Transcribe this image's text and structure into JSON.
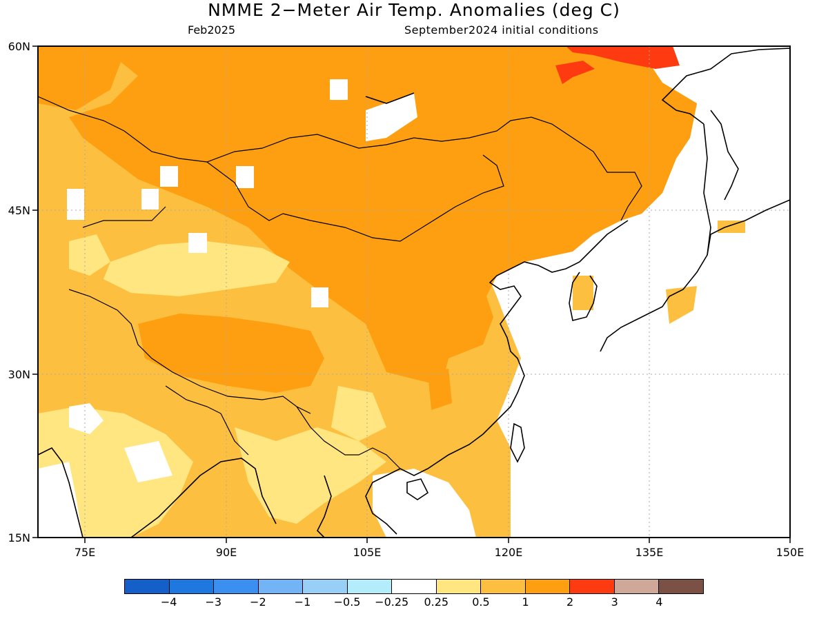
{
  "title": "NMME 2−Meter Air Temp. Anomalies (deg C)",
  "subtitle_left": "Feb2025",
  "subtitle_right": "September2024 initial conditions",
  "map": {
    "lon_range": [
      70,
      150
    ],
    "lat_range": [
      15,
      60
    ],
    "lat_labels": [
      "60N",
      "45N",
      "30N",
      "15N"
    ],
    "lon_labels": [
      "75E",
      "90E",
      "105E",
      "120E",
      "135E",
      "150E"
    ],
    "grid": "dotted"
  },
  "colorbar": {
    "colors": [
      "#1560c8",
      "#1f78e0",
      "#3a8ff0",
      "#72b4f5",
      "#98cff7",
      "#b3ecfa",
      "#ffffff",
      "#ffe680",
      "#fdbf3f",
      "#fd9f10",
      "#fd3a10",
      "#cfa899",
      "#7a5144"
    ],
    "tick_labels": [
      "−4",
      "−3",
      "−2",
      "−1",
      "−0.5",
      "−0.25",
      "0.25",
      "0.5",
      "1",
      "2",
      "3",
      "4"
    ]
  }
}
